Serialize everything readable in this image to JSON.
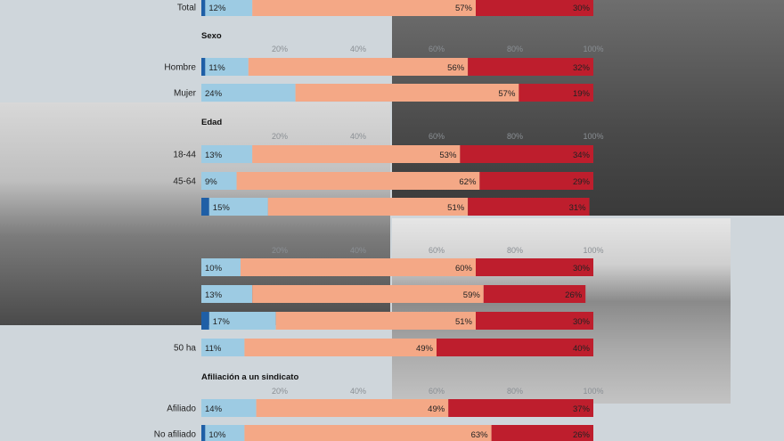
{
  "colors": {
    "segment_1": "#1f5fa6",
    "segment_2": "#9dcbe3",
    "segment_3": "#f4a886",
    "segment_4": "#be1e2d",
    "page_background": "#cfd6db"
  },
  "icons": {
    "photo_1": "cows-barn-photo",
    "photo_2": "tractors-protest-photo",
    "photo_3": "orchard-field-photo"
  },
  "chart_data": {
    "type": "bar",
    "orientation": "horizontal",
    "stacked": true,
    "xlim": [
      0,
      100
    ],
    "x_tick_labels": [
      "20%",
      "40%",
      "60%",
      "80%",
      "100%"
    ],
    "series_names": [
      "segment_1",
      "segment_2",
      "segment_3",
      "segment_4"
    ],
    "groups": [
      {
        "title": "",
        "rows": [
          {
            "label": "Total",
            "values": [
              1,
              12,
              57,
              30
            ],
            "labels": [
              "",
              "12%",
              "57%",
              "30%"
            ]
          }
        ]
      },
      {
        "title": "Sexo",
        "rows": [
          {
            "label": "Hombre",
            "values": [
              1,
              11,
              56,
              32
            ],
            "labels": [
              "",
              "11%",
              "56%",
              "32%"
            ]
          },
          {
            "label": "Mujer",
            "values": [
              0,
              24,
              57,
              19
            ],
            "labels": [
              "",
              "24%",
              "57%",
              "19%"
            ]
          }
        ]
      },
      {
        "title": "Edad",
        "rows": [
          {
            "label": "18-44",
            "values": [
              0,
              13,
              53,
              34
            ],
            "labels": [
              "",
              "13%",
              "53%",
              "34%"
            ]
          },
          {
            "label": "45-64",
            "values": [
              0,
              9,
              62,
              29
            ],
            "labels": [
              "",
              "9%",
              "62%",
              "29%"
            ]
          },
          {
            "label": "",
            "values": [
              2,
              15,
              51,
              31
            ],
            "labels": [
              "",
              "15%",
              "51%",
              "31%"
            ]
          }
        ]
      },
      {
        "title": "",
        "rows": [
          {
            "label": "",
            "values": [
              0,
              10,
              60,
              30
            ],
            "labels": [
              "",
              "10%",
              "60%",
              "30%"
            ]
          },
          {
            "label": "",
            "values": [
              0,
              13,
              59,
              26
            ],
            "labels": [
              "",
              "13%",
              "59%",
              "26%"
            ]
          },
          {
            "label": "",
            "values": [
              2,
              17,
              51,
              30
            ],
            "labels": [
              "",
              "17%",
              "51%",
              "30%"
            ]
          },
          {
            "label": "50 ha",
            "values": [
              0,
              11,
              49,
              40
            ],
            "labels": [
              "",
              "11%",
              "49%",
              "40%"
            ]
          }
        ]
      },
      {
        "title": "Afiliación a un sindicato",
        "rows": [
          {
            "label": "Afiliado",
            "values": [
              0,
              14,
              49,
              37
            ],
            "labels": [
              "",
              "14%",
              "49%",
              "37%"
            ]
          },
          {
            "label": "No afiliado",
            "values": [
              1,
              10,
              63,
              26
            ],
            "labels": [
              "",
              "10%",
              "63%",
              "26%"
            ]
          }
        ]
      }
    ]
  }
}
